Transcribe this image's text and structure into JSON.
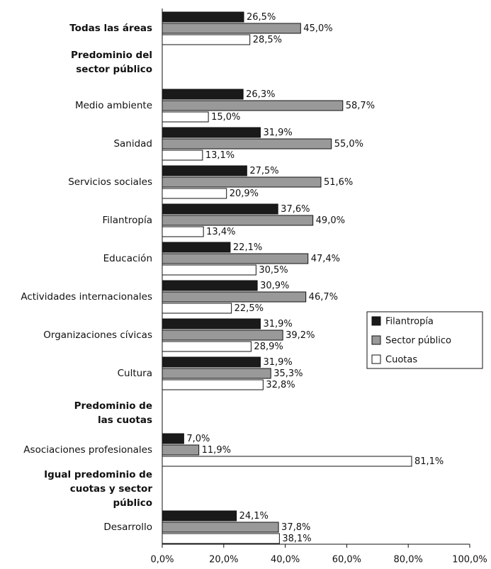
{
  "chart_data": {
    "type": "hbar",
    "categories": [
      "Todas las áreas",
      "Predominio del sector público",
      "Medio ambiente",
      "Sanidad",
      "Servicios sociales",
      "Filantropía",
      "Educación",
      "Actividades internacionales",
      "Organizaciones cívicas",
      "Cultura",
      "Predominio de las cuotas",
      "Asociaciones profesionales",
      "Igual predominio de cuotas y sector público",
      "Desarrollo"
    ],
    "series": [
      {
        "name": "Filantropía",
        "color": "#1a1a1a",
        "values": [
          26.5,
          null,
          26.3,
          31.9,
          27.5,
          37.6,
          22.1,
          30.9,
          31.9,
          31.9,
          null,
          7.0,
          null,
          24.1
        ],
        "value_labels": [
          "26,5%",
          null,
          "26,3%",
          "31,9%",
          "27,5%",
          "37,6%",
          "22,1%",
          "30,9%",
          "31,9%",
          "31,9%",
          null,
          "7,0%",
          null,
          "24,1%"
        ]
      },
      {
        "name": "Sector público",
        "color": "#999999",
        "values": [
          45.0,
          null,
          58.7,
          55.0,
          51.6,
          49.0,
          47.4,
          46.7,
          39.2,
          35.3,
          null,
          11.9,
          null,
          37.8
        ],
        "value_labels": [
          "45,0%",
          null,
          "58,7%",
          "55,0%",
          "51,6%",
          "49,0%",
          "47,4%",
          "46,7%",
          "39,2%",
          "35,3%",
          null,
          "11,9%",
          null,
          "37,8%"
        ]
      },
      {
        "name": "Cuotas",
        "color": "#ffffff",
        "values": [
          28.5,
          null,
          15.0,
          13.1,
          20.9,
          13.4,
          30.5,
          22.5,
          28.9,
          32.8,
          null,
          81.1,
          null,
          38.1
        ],
        "value_labels": [
          "28,5%",
          null,
          "15,0%",
          "13,1%",
          "20,9%",
          "13,4%",
          "30,5%",
          "22,5%",
          "28,9%",
          "32,8%",
          null,
          "81,1%",
          null,
          "38,1%"
        ]
      }
    ],
    "xlim": [
      0,
      100
    ],
    "xticks": [
      {
        "value": 0,
        "label": "0,0%"
      },
      {
        "value": 20,
        "label": "20,0%"
      },
      {
        "value": 40,
        "label": "40,0%"
      },
      {
        "value": 60,
        "label": "60,0%"
      },
      {
        "value": 80,
        "label": "80,0%"
      },
      {
        "value": 100,
        "label": "100,0%"
      }
    ],
    "legend": "right"
  }
}
